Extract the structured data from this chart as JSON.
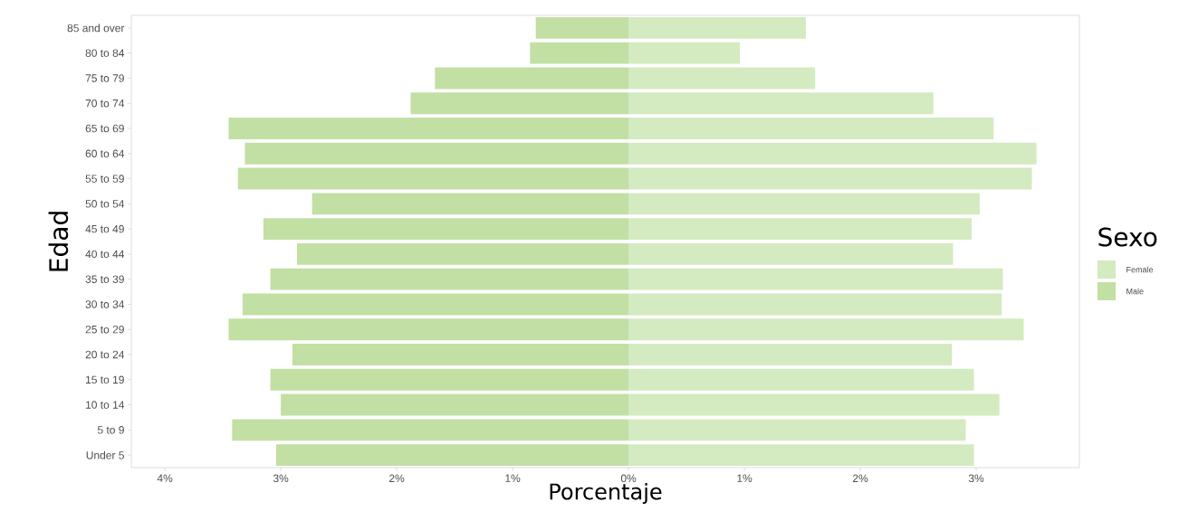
{
  "chart_data": {
    "type": "bar",
    "orientation": "horizontal",
    "stacked": true,
    "xlabel": "Porcentaje",
    "ylabel": "Edad",
    "legend_title": "Sexo",
    "legend": "right",
    "categories": [
      "85 and over",
      "80 to 84",
      "75 to 79",
      "70 to 74",
      "65 to 69",
      "60 to 64",
      "55 to 59",
      "50 to 54",
      "45 to 49",
      "40 to 44",
      "35 to 39",
      "30 to 34",
      "25 to 29",
      "20 to 24",
      "15 to 19",
      "10 to 14",
      "5 to 9",
      "Under 5"
    ],
    "series": [
      {
        "name": "Female",
        "color": "#d4eac0",
        "values": [
          1.53,
          0.96,
          1.61,
          2.63,
          3.15,
          3.52,
          3.48,
          3.03,
          2.96,
          2.8,
          3.23,
          3.22,
          3.41,
          2.79,
          2.98,
          3.2,
          2.91,
          2.98
        ]
      },
      {
        "name": "Male",
        "color": "#c2dfa4",
        "values": [
          -0.8,
          -0.85,
          -1.67,
          -1.88,
          -3.45,
          -3.31,
          -3.37,
          -2.73,
          -3.15,
          -2.86,
          -3.09,
          -3.33,
          -3.45,
          -2.9,
          -3.09,
          -3.0,
          -3.42,
          -3.04
        ]
      }
    ],
    "xlim": [
      -4.29,
      3.89
    ],
    "xticks": [
      {
        "value": -4,
        "label": "4%"
      },
      {
        "value": -3,
        "label": "3%"
      },
      {
        "value": -2,
        "label": "2%"
      },
      {
        "value": -1,
        "label": "1%"
      },
      {
        "value": 0,
        "label": "0%"
      },
      {
        "value": 1,
        "label": "1%"
      },
      {
        "value": 2,
        "label": "2%"
      },
      {
        "value": 3,
        "label": "3%"
      }
    ]
  }
}
